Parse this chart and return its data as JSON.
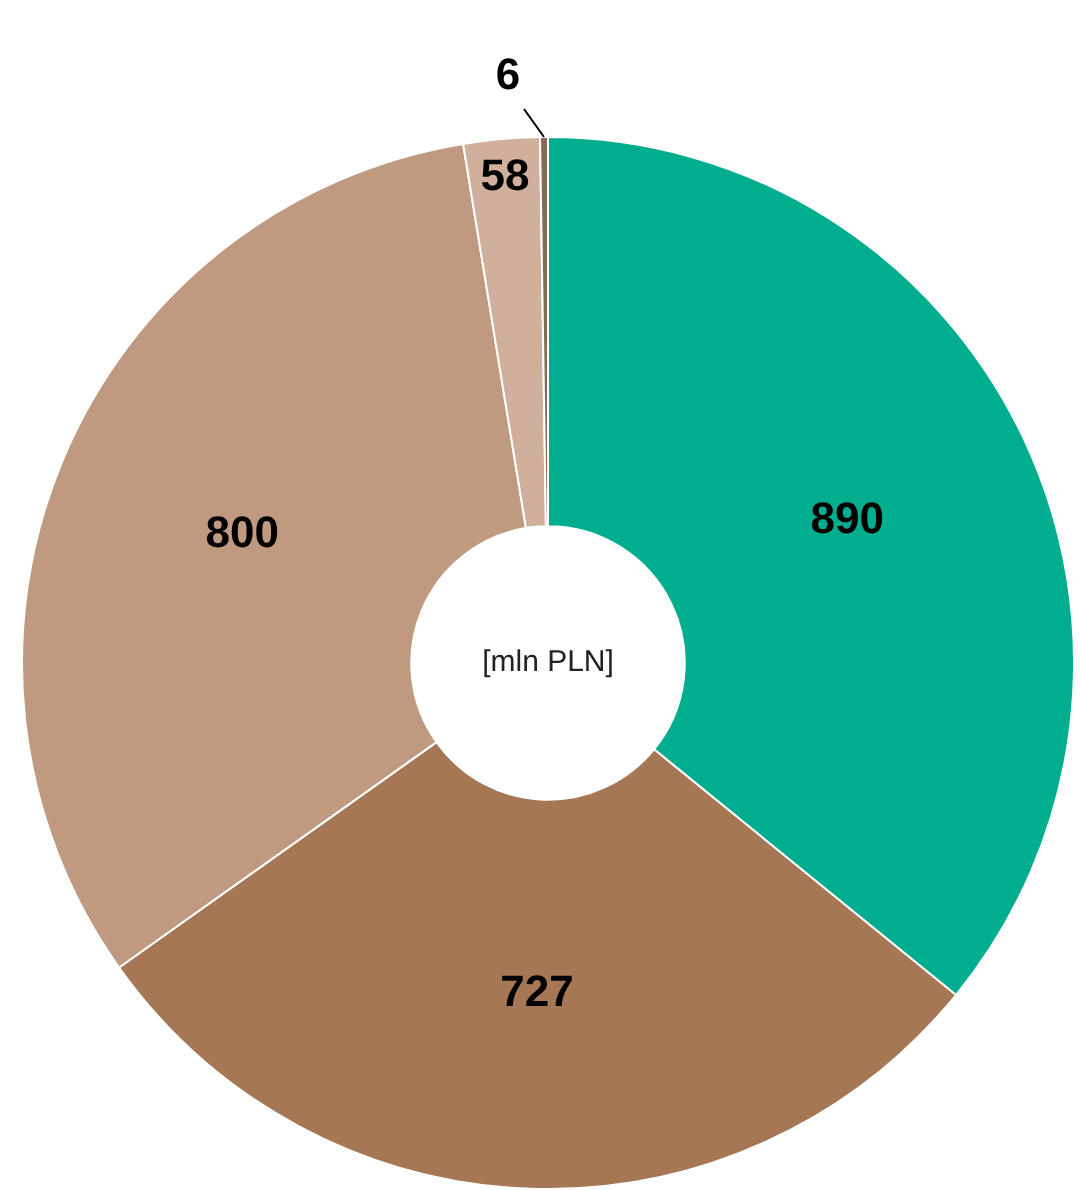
{
  "chart_data": {
    "type": "donut",
    "categories": [
      null,
      null,
      null,
      null,
      null
    ],
    "values": [
      890,
      727,
      800,
      58,
      6
    ],
    "colors": [
      "#00ad8e",
      "#a67754",
      "#c09a80",
      "#d0b09c",
      "#8a6a55"
    ],
    "data_labels": true,
    "legend": false,
    "annotations": [
      "[mln PLN]"
    ]
  }
}
